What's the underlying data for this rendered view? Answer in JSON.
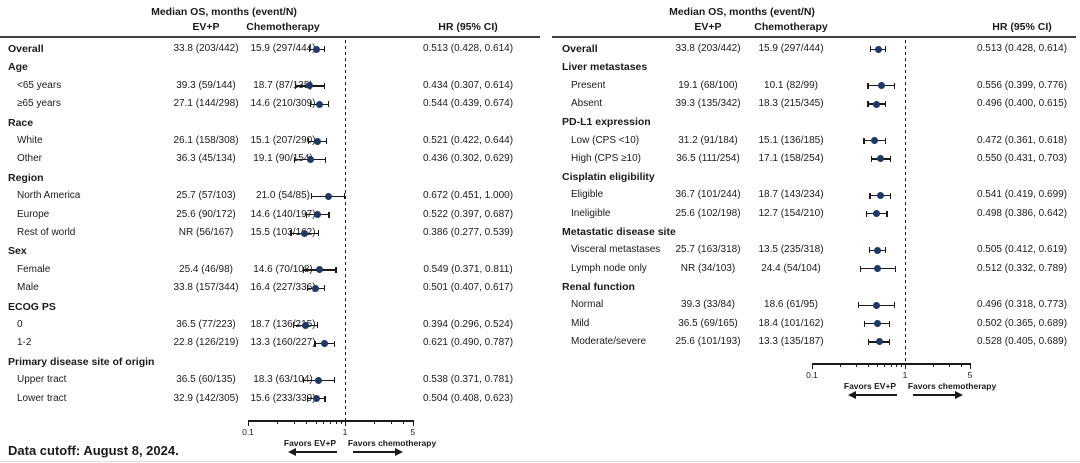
{
  "figure": {
    "footnote": "Data cutoff: August 8, 2024.",
    "colors": {
      "marker": "#1f3864",
      "line": "#1a1a1a"
    }
  },
  "chart_data": {
    "type": "forest",
    "x_axis": {
      "scale": "log",
      "range": [
        0.1,
        5
      ],
      "ticks": [
        0.1,
        1,
        5
      ],
      "tick_labels": [
        "0.1",
        "1",
        "5"
      ],
      "reference_line": 1,
      "minor_ticks": [
        0.2,
        0.3,
        0.4,
        0.5,
        0.6,
        0.7,
        0.8,
        0.9,
        2,
        3,
        4
      ]
    },
    "favors_left": "Favors EV+P",
    "favors_right": "Favors chemotherapy",
    "header": {
      "title": "Median OS, months (event/N)",
      "col_ev": "EV+P",
      "col_chemo": "Chemotherapy",
      "col_hr": "HR (95% CI)"
    },
    "panels": [
      {
        "rows": [
          {
            "kind": "data",
            "bold": true,
            "label": "Overall",
            "ev": "33.8 (203/442)",
            "chemo": "15.9 (297/444)",
            "hr": 0.513,
            "lo": 0.428,
            "hi": 0.614,
            "hr_text": "0.513 (0.428, 0.614)"
          },
          {
            "kind": "group",
            "label": "Age"
          },
          {
            "kind": "data",
            "label": "<65 years",
            "ev": "39.3 (59/144)",
            "chemo": "18.7 (87/135)",
            "hr": 0.434,
            "lo": 0.307,
            "hi": 0.614,
            "hr_text": "0.434 (0.307, 0.614)"
          },
          {
            "kind": "data",
            "label": "≥65 years",
            "ev": "27.1 (144/298)",
            "chemo": "14.6 (210/309)",
            "hr": 0.544,
            "lo": 0.439,
            "hi": 0.674,
            "hr_text": "0.544 (0.439, 0.674)"
          },
          {
            "kind": "group",
            "label": "Race"
          },
          {
            "kind": "data",
            "label": "White",
            "ev": "26.1 (158/308)",
            "chemo": "15.1 (207/290)",
            "hr": 0.521,
            "lo": 0.422,
            "hi": 0.644,
            "hr_text": "0.521 (0.422, 0.644)"
          },
          {
            "kind": "data",
            "label": "Other",
            "ev": "36.3 (45/134)",
            "chemo": "19.1 (90/154)",
            "hr": 0.436,
            "lo": 0.302,
            "hi": 0.629,
            "hr_text": "0.436 (0.302, 0.629)"
          },
          {
            "kind": "group",
            "label": "Region"
          },
          {
            "kind": "data",
            "label": "North America",
            "ev": "25.7 (57/103)",
            "chemo": "21.0 (54/85)",
            "hr": 0.672,
            "lo": 0.451,
            "hi": 1.0,
            "hr_text": "0.672 (0.451, 1.000)"
          },
          {
            "kind": "data",
            "label": "Europe",
            "ev": "25.6 (90/172)",
            "chemo": "14.6 (140/197)",
            "hr": 0.522,
            "lo": 0.397,
            "hi": 0.687,
            "hr_text": "0.522 (0.397, 0.687)"
          },
          {
            "kind": "data",
            "label": "Rest of world",
            "ev": "NR (56/167)",
            "chemo": "15.5 (103/162)",
            "hr": 0.386,
            "lo": 0.277,
            "hi": 0.539,
            "hr_text": "0.386 (0.277, 0.539)"
          },
          {
            "kind": "group",
            "label": "Sex"
          },
          {
            "kind": "data",
            "label": "Female",
            "ev": "25.4 (46/98)",
            "chemo": "14.6 (70/108)",
            "hr": 0.549,
            "lo": 0.371,
            "hi": 0.811,
            "hr_text": "0.549 (0.371, 0.811)"
          },
          {
            "kind": "data",
            "label": "Male",
            "ev": "33.8 (157/344)",
            "chemo": "16.4 (227/336)",
            "hr": 0.501,
            "lo": 0.407,
            "hi": 0.617,
            "hr_text": "0.501 (0.407, 0.617)"
          },
          {
            "kind": "group",
            "label": "ECOG PS"
          },
          {
            "kind": "data",
            "label": "0",
            "ev": "36.5 (77/223)",
            "chemo": "18.7 (136/215)",
            "hr": 0.394,
            "lo": 0.296,
            "hi": 0.524,
            "hr_text": "0.394 (0.296, 0.524)"
          },
          {
            "kind": "data",
            "label": "1-2",
            "ev": "22.8 (126/219)",
            "chemo": "13.3 (160/227)",
            "hr": 0.621,
            "lo": 0.49,
            "hi": 0.787,
            "hr_text": "0.621 (0.490, 0.787)"
          },
          {
            "kind": "group",
            "label": "Primary disease site of origin"
          },
          {
            "kind": "data",
            "label": "Upper tract",
            "ev": "36.5 (60/135)",
            "chemo": "18.3 (63/104)",
            "hr": 0.538,
            "lo": 0.371,
            "hi": 0.781,
            "hr_text": "0.538 (0.371, 0.781)"
          },
          {
            "kind": "data",
            "label": "Lower tract",
            "ev": "32.9 (142/305)",
            "chemo": "15.6 (233/339)",
            "hr": 0.504,
            "lo": 0.408,
            "hi": 0.623,
            "hr_text": "0.504 (0.408, 0.623)"
          }
        ]
      },
      {
        "rows": [
          {
            "kind": "data",
            "bold": true,
            "label": "Overall",
            "ev": "33.8 (203/442)",
            "chemo": "15.9 (297/444)",
            "hr": 0.513,
            "lo": 0.428,
            "hi": 0.614,
            "hr_text": "0.513 (0.428, 0.614)"
          },
          {
            "kind": "group",
            "label": "Liver metastases"
          },
          {
            "kind": "data",
            "label": "Present",
            "ev": "19.1 (68/100)",
            "chemo": "10.1 (82/99)",
            "hr": 0.556,
            "lo": 0.399,
            "hi": 0.776,
            "hr_text": "0.556 (0.399, 0.776)"
          },
          {
            "kind": "data",
            "label": "Absent",
            "ev": "39.3 (135/342)",
            "chemo": "18.3 (215/345)",
            "hr": 0.496,
            "lo": 0.4,
            "hi": 0.615,
            "hr_text": "0.496 (0.400, 0.615)"
          },
          {
            "kind": "group",
            "label": "PD-L1 expression"
          },
          {
            "kind": "data",
            "label": "Low (CPS <10)",
            "ev": "31.2 (91/184)",
            "chemo": "15.1 (136/185)",
            "hr": 0.472,
            "lo": 0.361,
            "hi": 0.618,
            "hr_text": "0.472 (0.361, 0.618)"
          },
          {
            "kind": "data",
            "label": "High (CPS ≥10)",
            "ev": "36.5 (111/254)",
            "chemo": "17.1 (158/254)",
            "hr": 0.55,
            "lo": 0.431,
            "hi": 0.703,
            "hr_text": "0.550 (0.431, 0.703)"
          },
          {
            "kind": "group",
            "label": "Cisplatin eligibility"
          },
          {
            "kind": "data",
            "label": "Eligible",
            "ev": "36.7 (101/244)",
            "chemo": "18.7 (143/234)",
            "hr": 0.541,
            "lo": 0.419,
            "hi": 0.699,
            "hr_text": "0.541 (0.419, 0.699)"
          },
          {
            "kind": "data",
            "label": "Ineligible",
            "ev": "25.6 (102/198)",
            "chemo": "12.7 (154/210)",
            "hr": 0.498,
            "lo": 0.386,
            "hi": 0.642,
            "hr_text": "0.498 (0.386, 0.642)"
          },
          {
            "kind": "group",
            "label": "Metastatic disease site"
          },
          {
            "kind": "data",
            "label": "Visceral metastases",
            "ev": "25.7 (163/318)",
            "chemo": "13.5 (235/318)",
            "hr": 0.505,
            "lo": 0.412,
            "hi": 0.619,
            "hr_text": "0.505 (0.412, 0.619)"
          },
          {
            "kind": "data",
            "label": "Lymph node only",
            "ev": "NR (34/103)",
            "chemo": "24.4 (54/104)",
            "hr": 0.512,
            "lo": 0.332,
            "hi": 0.789,
            "hr_text": "0.512 (0.332, 0.789)"
          },
          {
            "kind": "group",
            "label": "Renal function"
          },
          {
            "kind": "data",
            "label": "Normal",
            "ev": "39.3 (33/84)",
            "chemo": "18.6 (61/95)",
            "hr": 0.496,
            "lo": 0.318,
            "hi": 0.773,
            "hr_text": "0.496 (0.318, 0.773)"
          },
          {
            "kind": "data",
            "label": "Mild",
            "ev": "36.5 (69/165)",
            "chemo": "18.4 (101/162)",
            "hr": 0.502,
            "lo": 0.365,
            "hi": 0.689,
            "hr_text": "0.502 (0.365, 0.689)"
          },
          {
            "kind": "data",
            "label": "Moderate/severe",
            "ev": "25.6 (101/193)",
            "chemo": "13.3 (135/187)",
            "hr": 0.528,
            "lo": 0.405,
            "hi": 0.689,
            "hr_text": "0.528 (0.405, 0.689)"
          }
        ]
      }
    ]
  }
}
